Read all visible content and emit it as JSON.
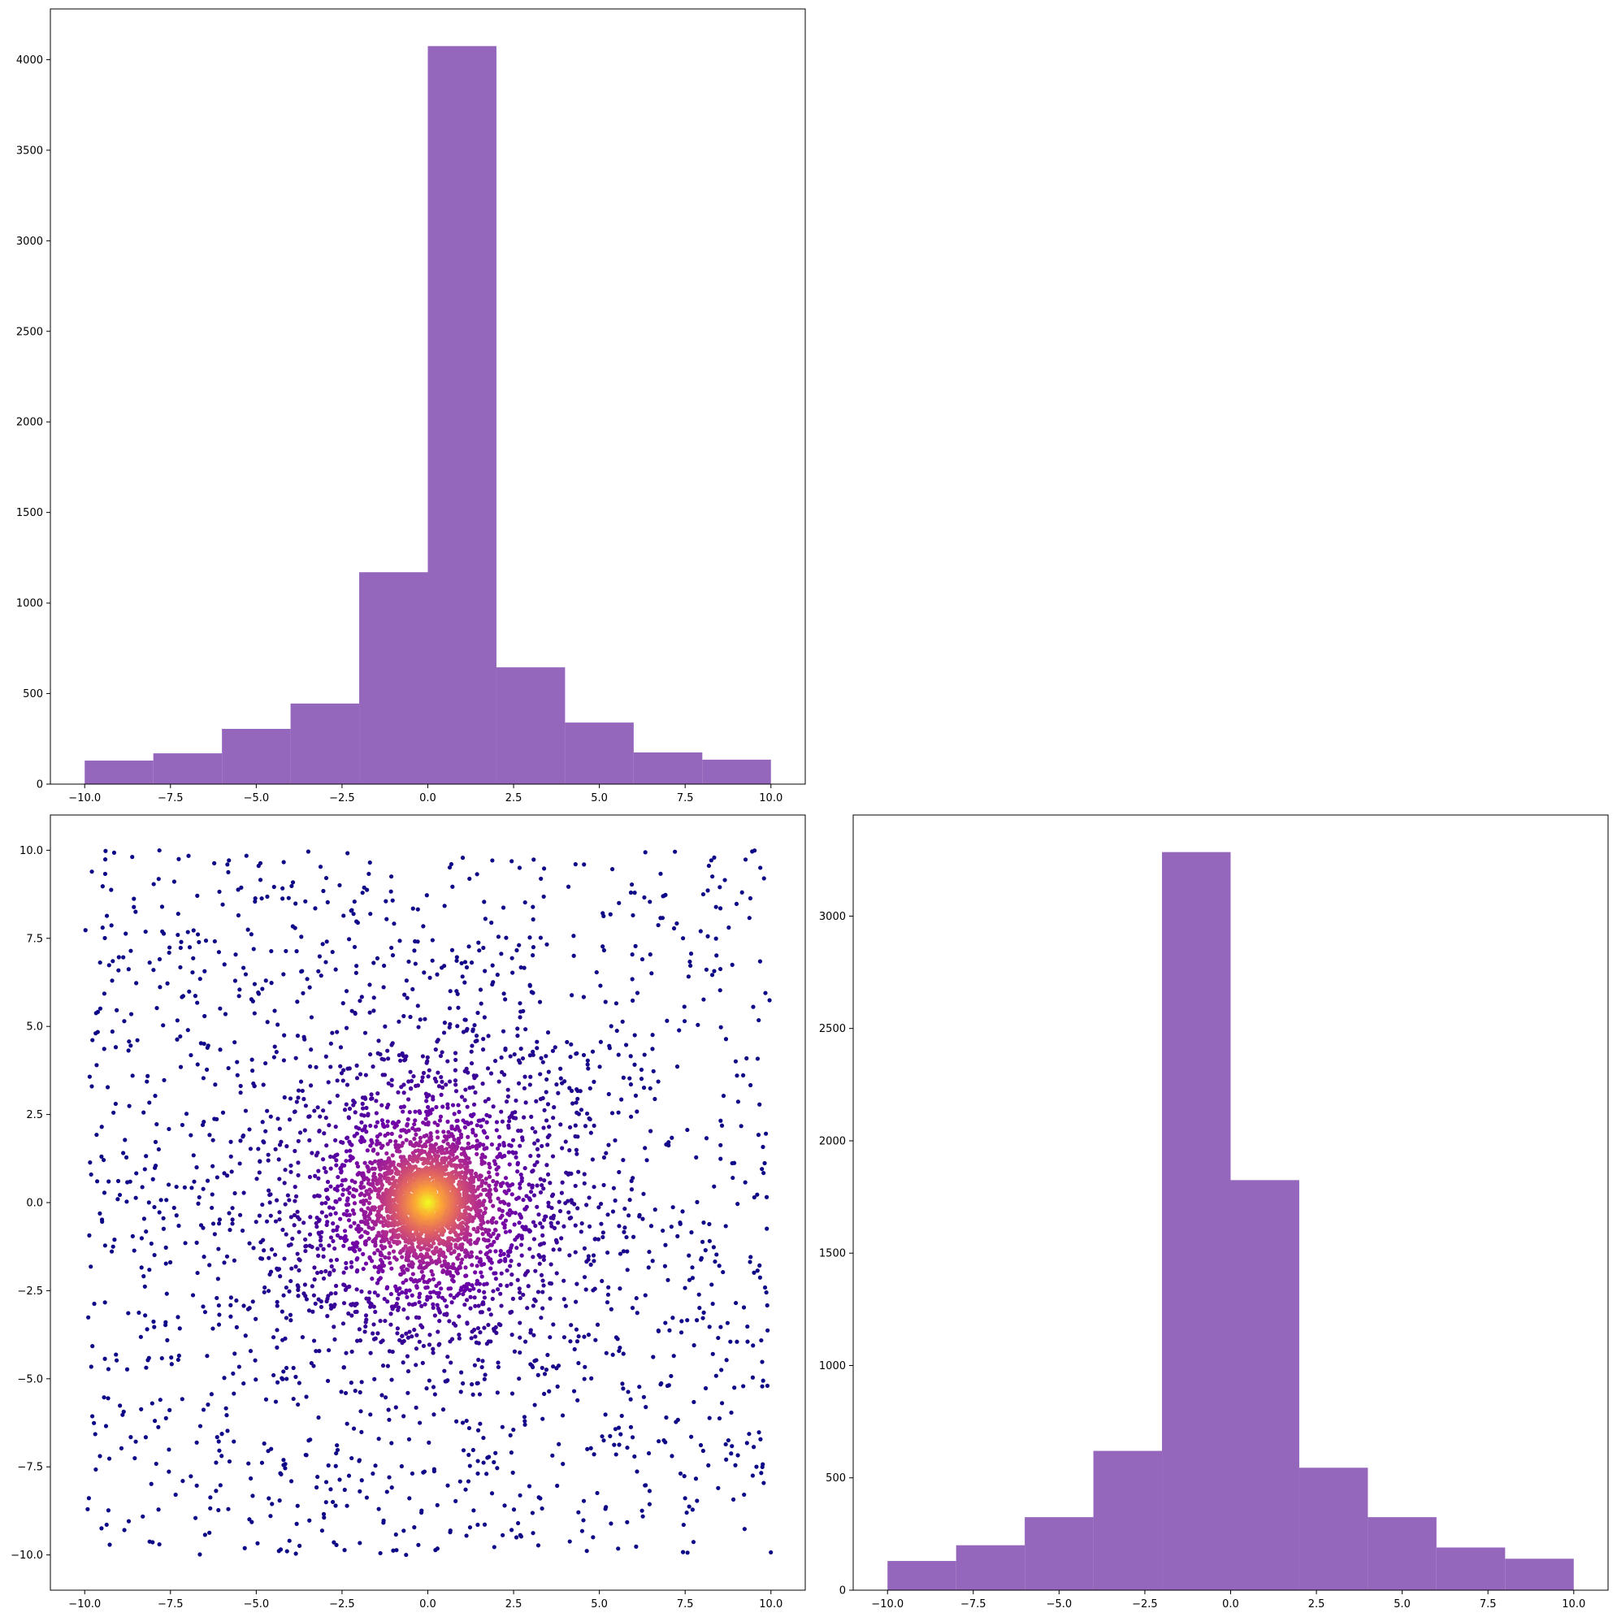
{
  "chart_data": [
    {
      "panel": "top-left",
      "type": "bar",
      "subtype": "histogram",
      "bar_color": "#9467bd",
      "bin_edges": [
        -10,
        -8,
        -6,
        -4,
        -2,
        0,
        2,
        4,
        6,
        8,
        10
      ],
      "values": [
        130,
        170,
        305,
        445,
        1170,
        4075,
        645,
        340,
        175,
        135
      ],
      "xlim": [
        -11,
        11
      ],
      "ylim": [
        0,
        4280
      ],
      "xticks": [
        -10,
        -7.5,
        -5,
        -2.5,
        0,
        2.5,
        5,
        7.5,
        10
      ],
      "xtick_labels": [
        "−10.0",
        "−7.5",
        "−5.0",
        "−2.5",
        "0.0",
        "2.5",
        "5.0",
        "7.5",
        "10.0"
      ],
      "yticks": [
        0,
        500,
        1000,
        1500,
        2000,
        2500,
        3000,
        3500,
        4000
      ],
      "ytick_labels": [
        "0",
        "500",
        "1000",
        "1500",
        "2000",
        "2500",
        "3000",
        "3500",
        "4000"
      ],
      "grid": false
    },
    {
      "panel": "bottom-left",
      "type": "scatter",
      "color_by": "density",
      "colormap": [
        "#0d0887",
        "#6a00a8",
        "#b12a90",
        "#e16462",
        "#fca636",
        "#f0f921"
      ],
      "n_points": 5000,
      "x_range": [
        -10,
        10
      ],
      "y_range": [
        -10,
        10
      ],
      "center": [
        0,
        0
      ],
      "xlim": [
        -11,
        11
      ],
      "ylim": [
        -11,
        11
      ],
      "xticks": [
        -10,
        -7.5,
        -5,
        -2.5,
        0,
        2.5,
        5,
        7.5,
        10
      ],
      "xtick_labels": [
        "−10.0",
        "−7.5",
        "−5.0",
        "−2.5",
        "0.0",
        "2.5",
        "5.0",
        "7.5",
        "10.0"
      ],
      "yticks": [
        -10,
        -7.5,
        -5,
        -2.5,
        0,
        2.5,
        5,
        7.5,
        10
      ],
      "ytick_labels": [
        "−10.0",
        "−7.5",
        "−5.0",
        "−2.5",
        "0.0",
        "2.5",
        "5.0",
        "7.5",
        "10.0"
      ],
      "grid": false
    },
    {
      "panel": "bottom-right",
      "type": "bar",
      "subtype": "histogram",
      "bar_color": "#9467bd",
      "bin_edges": [
        -10,
        -8,
        -6,
        -4,
        -2,
        0,
        2,
        4,
        6,
        8,
        10
      ],
      "values": [
        130,
        200,
        325,
        620,
        3285,
        1825,
        545,
        325,
        190,
        140
      ],
      "xlim": [
        -11,
        11
      ],
      "ylim": [
        0,
        3450
      ],
      "xticks": [
        -10,
        -7.5,
        -5,
        -2.5,
        0,
        2.5,
        5,
        7.5,
        10
      ],
      "xtick_labels": [
        "−10.0",
        "−7.5",
        "−5.0",
        "−2.5",
        "0.0",
        "2.5",
        "5.0",
        "7.5",
        "10.0"
      ],
      "yticks": [
        0,
        500,
        1000,
        1500,
        2000,
        2500,
        3000
      ],
      "ytick_labels": [
        "0",
        "500",
        "1000",
        "1500",
        "2000",
        "2500",
        "3000"
      ],
      "grid": false
    }
  ]
}
